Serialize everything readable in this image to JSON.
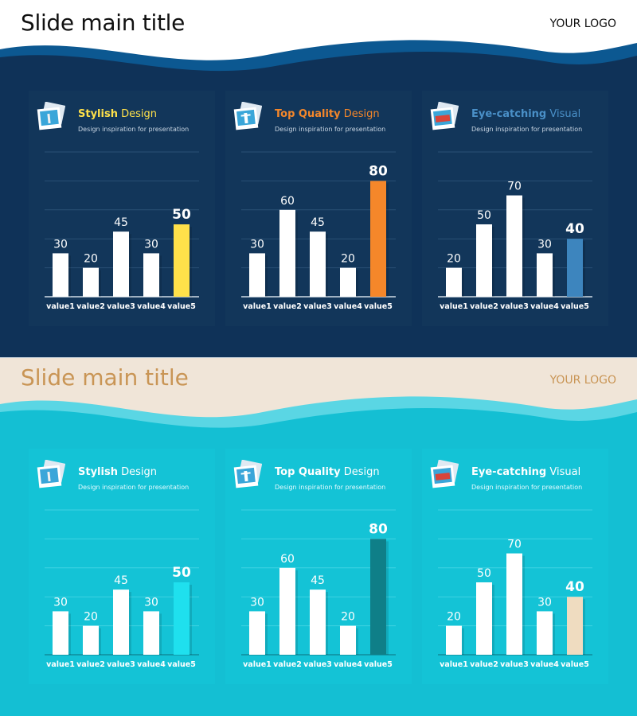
{
  "slides": [
    {
      "title": "Slide main title",
      "logo": "YOUR LOGO",
      "colors": {
        "panel_bg": "#12365a",
        "grid": "#2a5075",
        "axis": "#d0dbe6",
        "bar": "#ffffff",
        "label": "#ffffff"
      },
      "panels": [
        {
          "highlight": "Stylish",
          "rest": " Design",
          "subtitle": "Design inspiration for presentation",
          "icon": "photo-stack-icon",
          "accent": "#ffe14a",
          "head_color": "#ffe14a"
        },
        {
          "highlight": "Top Quality",
          "rest": " Design",
          "subtitle": "Design inspiration for presentation",
          "icon": "photo-stack-icon",
          "accent": "#f5872a",
          "head_color": "#f5872a"
        },
        {
          "highlight": "Eye-catching",
          "rest": " Visual",
          "subtitle": "Design inspiration for presentation",
          "icon": "photo-stack-icon",
          "accent": "#3d85be",
          "head_color": "#4a90c8"
        }
      ]
    },
    {
      "title": "Slide main title",
      "logo": "YOUR LOGO",
      "colors": {
        "panel_bg": "#14c3d6",
        "grid": "#3fd3e2",
        "axis": "#0f8d9c",
        "bar": "#ffffff",
        "label": "#ffffff"
      },
      "panels": [
        {
          "highlight": "Stylish",
          "rest": " Design",
          "subtitle": "Design inspiration for presentation",
          "icon": "photo-stack-icon",
          "accent": "#1fe0ee",
          "head_color": "#ffffff"
        },
        {
          "highlight": "Top Quality",
          "rest": " Design",
          "subtitle": "Design inspiration for presentation",
          "icon": "photo-stack-icon",
          "accent": "#0f7f88",
          "head_color": "#ffffff"
        },
        {
          "highlight": "Eye-catching",
          "rest": " Visual",
          "subtitle": "Design inspiration for presentation",
          "icon": "photo-stack-icon",
          "accent": "#efdcc0",
          "head_color": "#ffffff"
        }
      ]
    }
  ],
  "chart_data": [
    {
      "type": "bar",
      "categories": [
        "value1",
        "value2",
        "value3",
        "value4",
        "value5"
      ],
      "values": [
        30,
        20,
        45,
        30,
        50
      ],
      "ylim": [
        0,
        100
      ],
      "grid": true,
      "highlight_index": 4
    },
    {
      "type": "bar",
      "categories": [
        "value1",
        "value2",
        "value3",
        "value4",
        "value5"
      ],
      "values": [
        30,
        60,
        45,
        20,
        80
      ],
      "ylim": [
        0,
        100
      ],
      "grid": true,
      "highlight_index": 4
    },
    {
      "type": "bar",
      "categories": [
        "value1",
        "value2",
        "value3",
        "value4",
        "value5"
      ],
      "values": [
        20,
        50,
        70,
        30,
        40
      ],
      "ylim": [
        0,
        100
      ],
      "grid": true,
      "highlight_index": 4
    },
    {
      "type": "bar",
      "categories": [
        "value1",
        "value2",
        "value3",
        "value4",
        "value5"
      ],
      "values": [
        30,
        20,
        45,
        30,
        50
      ],
      "ylim": [
        0,
        100
      ],
      "grid": true,
      "highlight_index": 4
    },
    {
      "type": "bar",
      "categories": [
        "value1",
        "value2",
        "value3",
        "value4",
        "value5"
      ],
      "values": [
        30,
        60,
        45,
        20,
        80
      ],
      "ylim": [
        0,
        100
      ],
      "grid": true,
      "highlight_index": 4
    },
    {
      "type": "bar",
      "categories": [
        "value1",
        "value2",
        "value3",
        "value4",
        "value5"
      ],
      "values": [
        20,
        50,
        70,
        30,
        40
      ],
      "ylim": [
        0,
        100
      ],
      "grid": true,
      "highlight_index": 4
    }
  ]
}
